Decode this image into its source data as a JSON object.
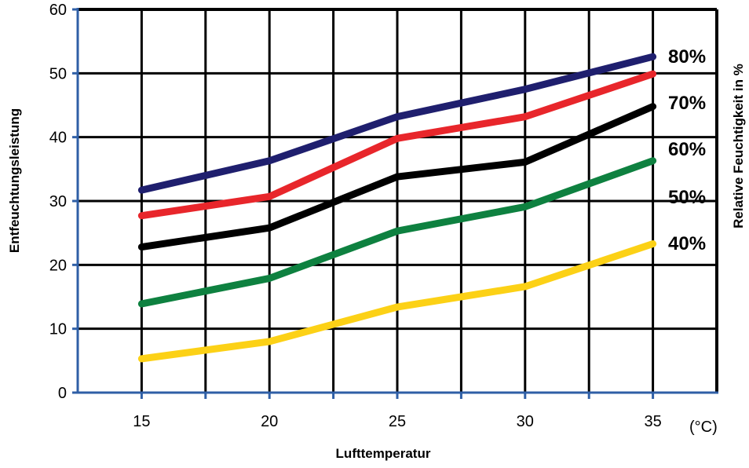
{
  "chart_data": {
    "type": "line",
    "title": "",
    "xlabel": "Lufttemperatur",
    "ylabel": "Entfeuchtungsleistung",
    "y2label": "Relative Feuchtigkeit in %",
    "x_unit": "(°C)",
    "x": [
      15,
      20,
      25,
      30,
      35
    ],
    "xlim": [
      12.5,
      37.5
    ],
    "ylim": [
      0,
      60
    ],
    "yticks": [
      0,
      10,
      20,
      30,
      40,
      50,
      60
    ],
    "grid": true,
    "series": [
      {
        "name": "80%",
        "color": "#1f1f6e",
        "values": [
          31.7,
          36.3,
          43.2,
          47.5,
          52.6
        ]
      },
      {
        "name": "70%",
        "color": "#e8262b",
        "values": [
          27.7,
          30.7,
          39.8,
          43.2,
          49.9
        ]
      },
      {
        "name": "60%",
        "color": "#000000",
        "values": [
          22.8,
          25.8,
          33.8,
          36.1,
          44.8
        ]
      },
      {
        "name": "50%",
        "color": "#0e8140",
        "values": [
          13.9,
          17.9,
          25.3,
          29.1,
          36.3
        ]
      },
      {
        "name": "40%",
        "color": "#fcd116",
        "values": [
          5.3,
          8.0,
          13.4,
          16.6,
          23.3
        ]
      }
    ]
  }
}
